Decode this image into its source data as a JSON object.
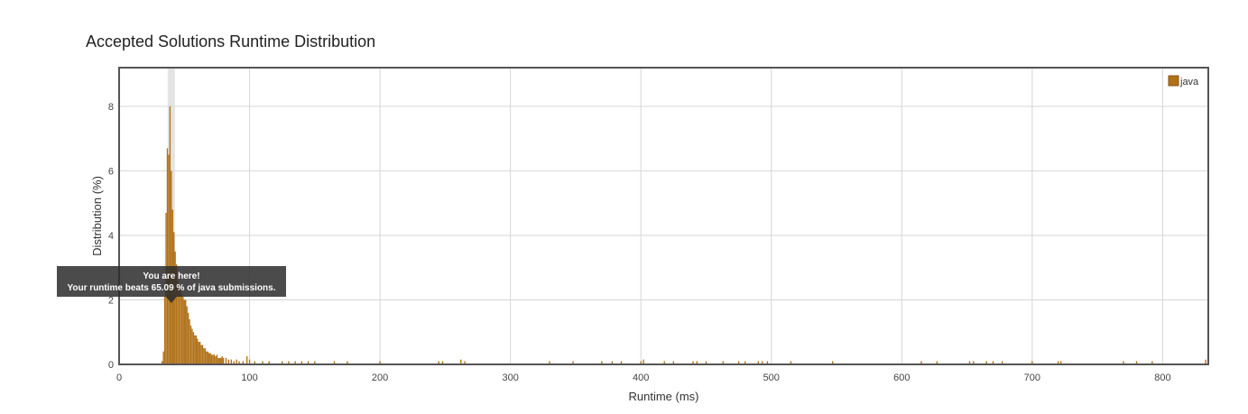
{
  "chart_data": {
    "type": "bar",
    "title": "Accepted Solutions Runtime Distribution",
    "xlabel": "Runtime (ms)",
    "ylabel": "Distribution (%)",
    "xlim": [
      0,
      835
    ],
    "ylim": [
      0,
      9.2
    ],
    "xticks": [
      0,
      100,
      200,
      300,
      400,
      500,
      600,
      700,
      800
    ],
    "yticks": [
      0,
      2,
      4,
      6,
      8
    ],
    "grid": true,
    "legend_position": "top-right",
    "series": [
      {
        "name": "java",
        "color": "#b07118",
        "x": [
          33,
          34,
          35,
          36,
          37,
          38,
          39,
          40,
          41,
          42,
          43,
          44,
          45,
          46,
          47,
          48,
          49,
          50,
          51,
          52,
          53,
          54,
          55,
          56,
          57,
          58,
          59,
          60,
          61,
          62,
          63,
          64,
          65,
          66,
          67,
          68,
          69,
          70,
          71,
          72,
          73,
          74,
          75,
          76,
          77,
          78,
          79,
          80,
          82,
          84,
          86,
          88,
          90,
          92,
          95,
          98,
          100,
          104,
          110,
          115,
          125,
          130,
          135,
          140,
          145,
          150,
          165,
          175,
          200,
          245,
          248,
          262,
          265,
          330,
          348,
          370,
          378,
          385,
          400,
          402,
          418,
          425,
          440,
          443,
          450,
          463,
          475,
          480,
          490,
          493,
          497,
          515,
          547,
          615,
          627,
          652,
          655,
          665,
          670,
          677,
          700,
          720,
          722,
          770,
          780,
          792,
          833
        ],
        "values": [
          0.1,
          0.4,
          2.1,
          4.7,
          6.7,
          6.5,
          8.0,
          6.0,
          4.8,
          4.1,
          3.5,
          3.1,
          2.6,
          2.4,
          2.3,
          2.2,
          2.1,
          2.0,
          2.0,
          1.8,
          1.6,
          1.4,
          1.2,
          1.1,
          1.0,
          0.9,
          0.9,
          0.8,
          0.7,
          0.7,
          0.6,
          0.6,
          0.5,
          0.5,
          0.4,
          0.4,
          0.35,
          0.35,
          0.3,
          0.3,
          0.3,
          0.25,
          0.3,
          0.2,
          0.2,
          0.2,
          0.25,
          0.2,
          0.2,
          0.15,
          0.15,
          0.1,
          0.15,
          0.1,
          0.1,
          0.25,
          0.15,
          0.1,
          0.1,
          0.1,
          0.1,
          0.1,
          0.1,
          0.1,
          0.1,
          0.1,
          0.1,
          0.1,
          0.1,
          0.1,
          0.1,
          0.15,
          0.1,
          0.1,
          0.1,
          0.1,
          0.1,
          0.1,
          0.1,
          0.15,
          0.1,
          0.1,
          0.1,
          0.1,
          0.1,
          0.1,
          0.1,
          0.1,
          0.1,
          0.1,
          0.1,
          0.1,
          0.1,
          0.1,
          0.1,
          0.1,
          0.1,
          0.1,
          0.1,
          0.1,
          0.1,
          0.1,
          0.1,
          0.1,
          0.1,
          0.1,
          0.15
        ]
      }
    ],
    "highlight_x": 40,
    "tooltip": {
      "line1": "You are here!",
      "line2": "Your runtime beats 65.09 % of java submissions."
    }
  }
}
